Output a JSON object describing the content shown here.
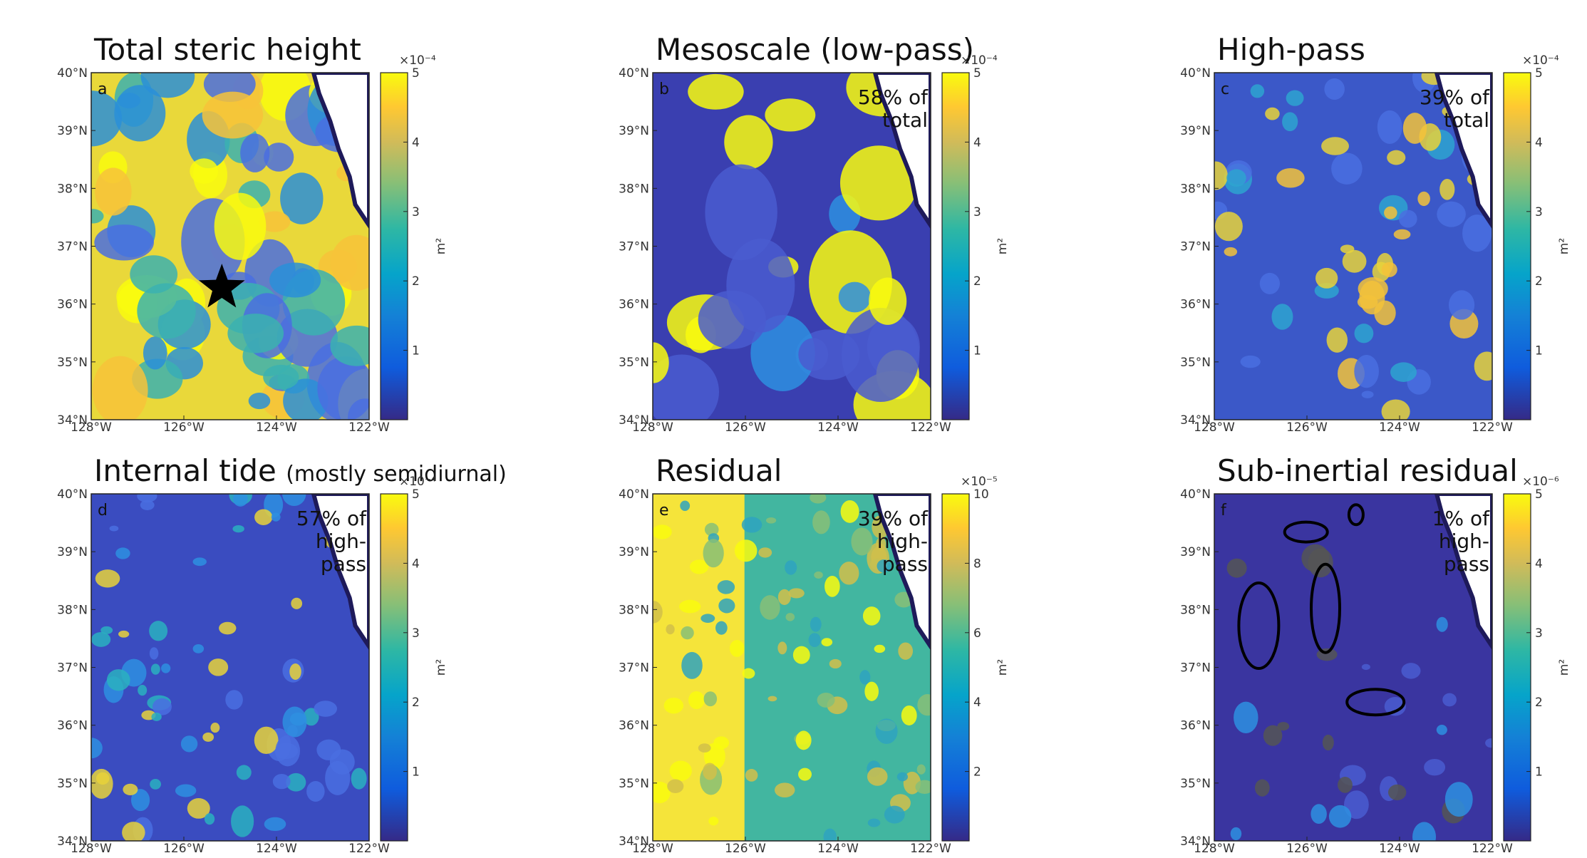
{
  "map_axes": {
    "latlim": [
      34,
      40
    ],
    "lonlim": [
      -128,
      -122
    ],
    "lat_ticks": [
      {
        "value": 34,
        "label": "34°N"
      },
      {
        "value": 35,
        "label": "35°N"
      },
      {
        "value": 36,
        "label": "36°N"
      },
      {
        "value": 37,
        "label": "37°N"
      },
      {
        "value": 38,
        "label": "38°N"
      },
      {
        "value": 39,
        "label": "39°N"
      },
      {
        "value": 40,
        "label": "40°N"
      }
    ],
    "lon_ticks": [
      {
        "value": -128,
        "label": "128°W"
      },
      {
        "value": -126,
        "label": "126°W"
      },
      {
        "value": -124,
        "label": "124°W"
      },
      {
        "value": -122,
        "label": "122°W"
      }
    ]
  },
  "panels": [
    {
      "letter": "a",
      "title": "Total steric height",
      "cbar_exponent": "×10⁻⁴",
      "cbar_unit": "m²",
      "clim": [
        0,
        5
      ],
      "cbar_ticks": [
        1,
        2,
        3,
        4,
        5
      ]
    },
    {
      "letter": "b",
      "title": "Mesoscale (low-pass)",
      "annotation": [
        "58% of",
        "total"
      ],
      "cbar_exponent": "×10⁻⁴",
      "cbar_unit": "m²",
      "clim": [
        0,
        5
      ],
      "cbar_ticks": [
        1,
        2,
        3,
        4,
        5
      ]
    },
    {
      "letter": "c",
      "title": "High-pass",
      "annotation": [
        "39% of",
        "total"
      ],
      "cbar_exponent": "×10⁻⁴",
      "cbar_unit": "m²",
      "clim": [
        0,
        5
      ],
      "cbar_ticks": [
        1,
        2,
        3,
        4,
        5
      ]
    },
    {
      "letter": "d",
      "title": "Internal tide",
      "subtitle": "(mostly semidiurnal)",
      "annotation": [
        "57% of",
        "high-",
        "pass"
      ],
      "cbar_exponent": "×10⁻⁴",
      "cbar_unit": "m²",
      "clim": [
        0,
        5
      ],
      "cbar_ticks": [
        1,
        2,
        3,
        4,
        5
      ]
    },
    {
      "letter": "e",
      "title": "Residual",
      "annotation": [
        "39% of",
        "high-",
        "pass"
      ],
      "cbar_exponent": "×10⁻⁵",
      "cbar_unit": "m²",
      "clim": [
        0,
        10
      ],
      "cbar_ticks": [
        2,
        4,
        6,
        8,
        10
      ]
    },
    {
      "letter": "f",
      "title": "Sub-inertial residual",
      "annotation": [
        "1% of",
        "high-",
        "pass"
      ],
      "cbar_exponent": "×10⁻⁶",
      "cbar_unit": "m²",
      "clim": [
        0,
        5
      ],
      "cbar_ticks": [
        1,
        2,
        3,
        4,
        5
      ]
    }
  ]
}
